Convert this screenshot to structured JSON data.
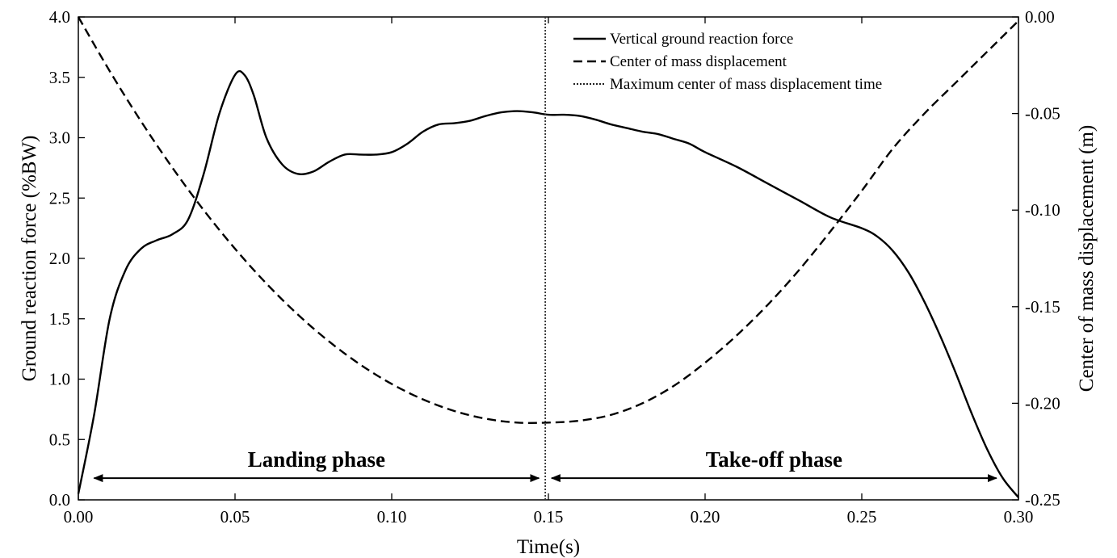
{
  "chart_data": {
    "type": "line",
    "xlabel": "Time(s)",
    "ylabel_left": "Ground reaction force (%BW)",
    "ylabel_right": "Center of mass displacement (m)",
    "xlim": [
      0.0,
      0.3
    ],
    "ylim_left": [
      0.0,
      4.0
    ],
    "ylim_right": [
      -0.25,
      0.0
    ],
    "grid": false,
    "legend_position": "top-center",
    "x_ticks": [
      "0.00",
      "0.05",
      "0.10",
      "0.15",
      "0.20",
      "0.25",
      "0.30"
    ],
    "x_tick_values": [
      0.0,
      0.05,
      0.1,
      0.15,
      0.2,
      0.25,
      0.3
    ],
    "y_left_ticks": [
      "0.0",
      "0.5",
      "1.0",
      "1.5",
      "2.0",
      "2.5",
      "3.0",
      "3.5",
      "4.0"
    ],
    "y_left_tick_values": [
      0.0,
      0.5,
      1.0,
      1.5,
      2.0,
      2.5,
      3.0,
      3.5,
      4.0
    ],
    "y_right_ticks": [
      "-0.25",
      "-0.20",
      "-0.15",
      "-0.10",
      "-0.05",
      "0.00"
    ],
    "y_right_tick_values": [
      -0.25,
      -0.2,
      -0.15,
      -0.1,
      -0.05,
      0.0
    ],
    "series": [
      {
        "name": "Vertical ground reaction force",
        "axis": "left",
        "style": "solid",
        "color": "#000000",
        "x": [
          0.0,
          0.005,
          0.01,
          0.015,
          0.02,
          0.025,
          0.03,
          0.035,
          0.04,
          0.045,
          0.05,
          0.053,
          0.056,
          0.06,
          0.065,
          0.07,
          0.075,
          0.08,
          0.085,
          0.09,
          0.095,
          0.1,
          0.105,
          0.11,
          0.115,
          0.12,
          0.125,
          0.13,
          0.135,
          0.14,
          0.145,
          0.15,
          0.155,
          0.16,
          0.165,
          0.17,
          0.175,
          0.18,
          0.185,
          0.19,
          0.195,
          0.2,
          0.21,
          0.22,
          0.23,
          0.24,
          0.25,
          0.255,
          0.26,
          0.265,
          0.27,
          0.275,
          0.28,
          0.285,
          0.29,
          0.295,
          0.3
        ],
        "y": [
          0.05,
          0.7,
          1.5,
          1.9,
          2.08,
          2.15,
          2.2,
          2.32,
          2.7,
          3.2,
          3.52,
          3.52,
          3.35,
          3.0,
          2.78,
          2.7,
          2.72,
          2.8,
          2.86,
          2.86,
          2.86,
          2.88,
          2.95,
          3.05,
          3.11,
          3.12,
          3.14,
          3.18,
          3.21,
          3.22,
          3.21,
          3.19,
          3.19,
          3.18,
          3.15,
          3.11,
          3.08,
          3.05,
          3.03,
          2.99,
          2.95,
          2.88,
          2.76,
          2.62,
          2.48,
          2.34,
          2.25,
          2.18,
          2.06,
          1.88,
          1.64,
          1.36,
          1.05,
          0.72,
          0.42,
          0.18,
          0.02
        ]
      },
      {
        "name": "Center of mass displacement",
        "axis": "right",
        "style": "dashed",
        "color": "#000000",
        "x": [
          0.0,
          0.01,
          0.02,
          0.03,
          0.04,
          0.05,
          0.06,
          0.07,
          0.08,
          0.09,
          0.1,
          0.11,
          0.12,
          0.13,
          0.14,
          0.15,
          0.16,
          0.17,
          0.18,
          0.19,
          0.2,
          0.21,
          0.22,
          0.23,
          0.24,
          0.25,
          0.26,
          0.27,
          0.28,
          0.29,
          0.3
        ],
        "y": [
          0.0,
          -0.028,
          -0.054,
          -0.078,
          -0.1,
          -0.12,
          -0.138,
          -0.154,
          -0.168,
          -0.18,
          -0.19,
          -0.198,
          -0.204,
          -0.208,
          -0.21,
          -0.21,
          -0.209,
          -0.206,
          -0.2,
          -0.191,
          -0.179,
          -0.165,
          -0.149,
          -0.131,
          -0.111,
          -0.09,
          -0.068,
          -0.05,
          -0.034,
          -0.018,
          -0.002
        ]
      }
    ],
    "vertical_line": {
      "name": "Maximum center of mass displacement time",
      "x": 0.149,
      "style": "dotted"
    },
    "annotations": [
      {
        "text": "Landing phase",
        "x_start": 0.005,
        "x_end": 0.147,
        "y": 0.18
      },
      {
        "text": "Take-off phase",
        "x_start": 0.151,
        "x_end": 0.293,
        "y": 0.18
      }
    ]
  }
}
